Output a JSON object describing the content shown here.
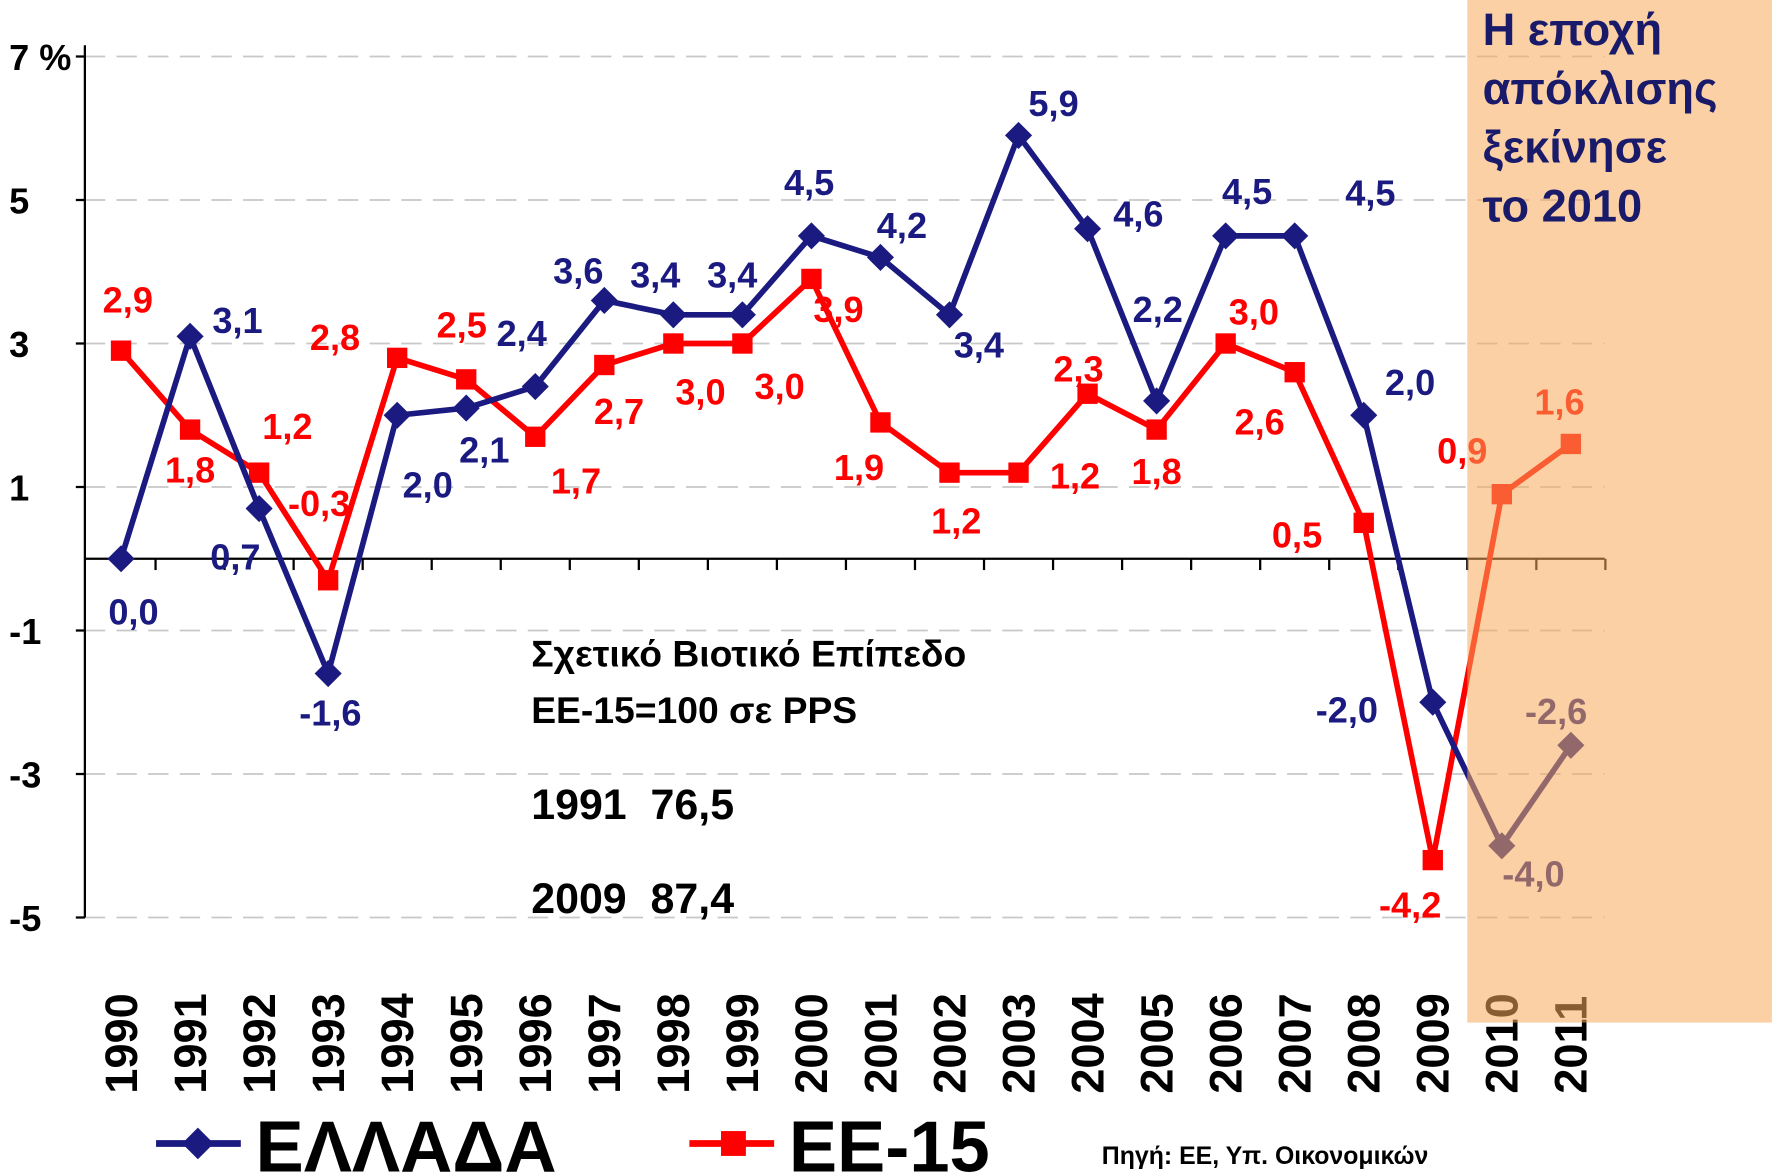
{
  "chart_data": {
    "type": "line",
    "categories": [
      "1990",
      "1991",
      "1992",
      "1993",
      "1994",
      "1995",
      "1996",
      "1997",
      "1998",
      "1999",
      "2000",
      "2001",
      "2002",
      "2003",
      "2004",
      "2005",
      "2006",
      "2007",
      "2008",
      "2009",
      "2010",
      "2011"
    ],
    "series": [
      {
        "name": "ΕΛΛΑΔΑ",
        "color": "#1a1a80",
        "values": [
          0.0,
          3.1,
          0.7,
          -1.6,
          2.0,
          2.1,
          2.4,
          3.6,
          3.4,
          3.4,
          4.5,
          4.2,
          3.4,
          5.9,
          4.6,
          2.2,
          4.5,
          4.5,
          2.0,
          -2.0,
          -4.0,
          -2.6
        ],
        "value_labels": [
          "0,0",
          "3,1",
          "0,7",
          "-1,6",
          "2,0",
          "2,1",
          "2,4",
          "3,6",
          "3,4",
          "3,4",
          "4,5",
          "4,2",
          "3,4",
          "5,9",
          "4,6",
          "2,2",
          "4,5",
          "4,5",
          "2,0",
          "-2,0",
          "-4,0",
          "-2,6"
        ]
      },
      {
        "name": "ΕΕ-15",
        "color": "#ff0000",
        "values": [
          2.9,
          1.8,
          1.2,
          -0.3,
          2.8,
          2.5,
          1.7,
          2.7,
          3.0,
          3.0,
          3.9,
          1.9,
          1.2,
          1.2,
          2.3,
          1.8,
          3.0,
          2.6,
          0.5,
          -4.2,
          0.9,
          1.6
        ],
        "value_labels": [
          "2,9",
          "1,8",
          "1,2",
          "-0,3",
          "2,8",
          "2,5",
          "1,7",
          "2,7",
          "3,0",
          "3,0",
          "3,9",
          "1,9",
          "1,2",
          "1,2",
          "2,3",
          "1,8",
          "3,0",
          "2,6",
          "0,5",
          "-4,2",
          "0,9",
          "1,6"
        ]
      }
    ],
    "ylim": [
      -5,
      7
    ],
    "yticks": [
      -5,
      -3,
      -1,
      1,
      3,
      5,
      {
        "value": 7,
        "label": "7 %"
      }
    ],
    "grid": true,
    "period_note": [
      "Η εποχή",
      "απόκλισης",
      "ξεκίνησε",
      "το 2010"
    ],
    "inset_note": [
      "Σχετικό Βιοτικό Επίπεδο",
      "ΕΕ-15=100 σε PPS",
      "1991  76,5",
      "2009  87,4"
    ],
    "source": "Πηγή: ΕΕ, Υπ. Οικονομικών"
  }
}
